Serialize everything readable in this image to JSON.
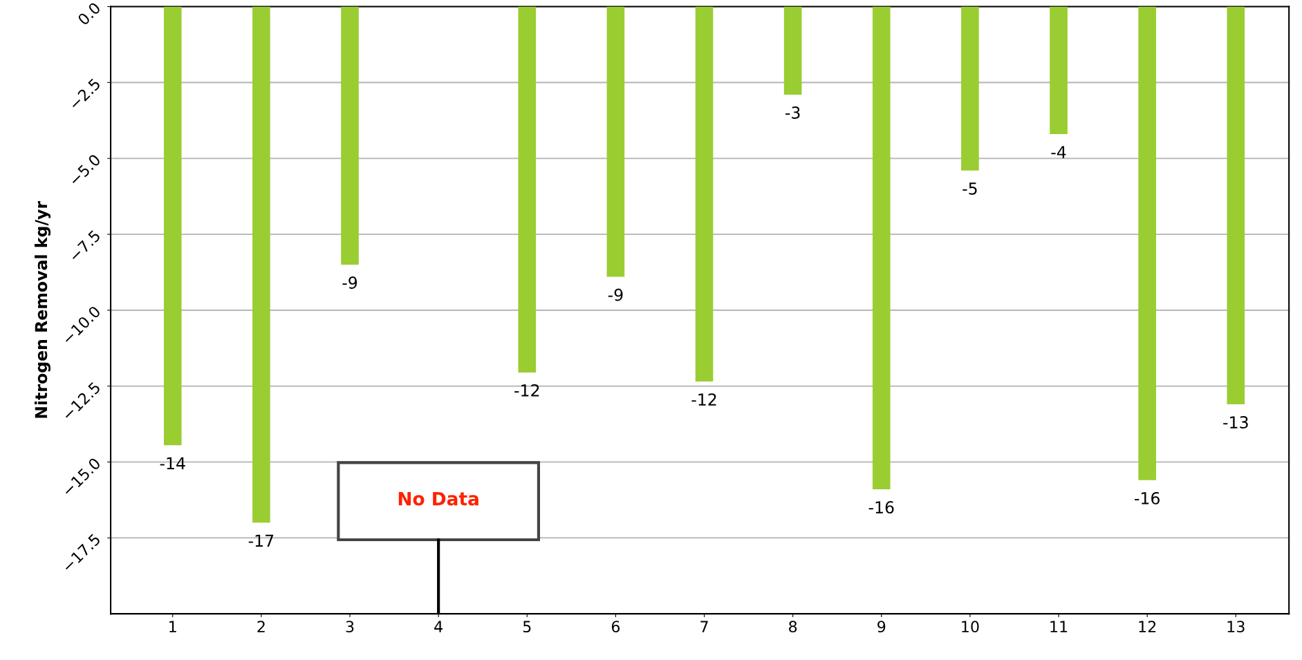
{
  "chart_data": {
    "type": "bar",
    "ylabel": "Nitrogen Removal kg/yr",
    "categories": [
      "1",
      "2",
      "3",
      "4",
      "5",
      "6",
      "7",
      "8",
      "9",
      "10",
      "11",
      "12",
      "13"
    ],
    "values": [
      -14.45,
      -17.0,
      -8.5,
      null,
      -12.05,
      -8.9,
      -12.35,
      -2.9,
      -15.9,
      -5.4,
      -4.2,
      -15.6,
      -13.1
    ],
    "value_labels": [
      "-14",
      "-17",
      "-9",
      null,
      "-12",
      "-9",
      "-12",
      "-3",
      "-16",
      "-5",
      "-4",
      "-16",
      "-13"
    ],
    "color": "#9acd32",
    "ylim": [
      -20,
      0
    ],
    "yticks": [
      {
        "value": 0,
        "label": "0.0"
      },
      {
        "value": -2.5,
        "label": "−2.5"
      },
      {
        "value": -5,
        "label": "−5.0"
      },
      {
        "value": -7.5,
        "label": "−7.5"
      },
      {
        "value": -10,
        "label": "−10.0"
      },
      {
        "value": -12.5,
        "label": "−12.5"
      },
      {
        "value": -15,
        "label": "−15.0"
      },
      {
        "value": -17.5,
        "label": "−17.5"
      }
    ],
    "grid": "y",
    "annotations": [
      "No Data"
    ]
  }
}
